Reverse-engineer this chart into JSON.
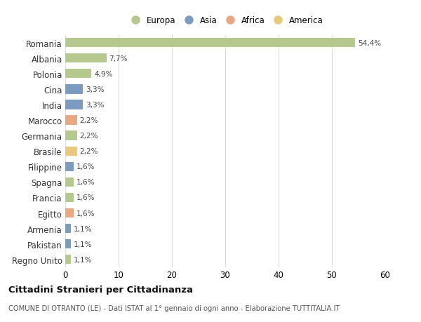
{
  "countries": [
    "Romania",
    "Albania",
    "Polonia",
    "Cina",
    "India",
    "Marocco",
    "Germania",
    "Brasile",
    "Filippine",
    "Spagna",
    "Francia",
    "Egitto",
    "Armenia",
    "Pakistan",
    "Regno Unito"
  ],
  "values": [
    54.4,
    7.7,
    4.9,
    3.3,
    3.3,
    2.2,
    2.2,
    2.2,
    1.6,
    1.6,
    1.6,
    1.6,
    1.1,
    1.1,
    1.1
  ],
  "labels": [
    "54,4%",
    "7,7%",
    "4,9%",
    "3,3%",
    "3,3%",
    "2,2%",
    "2,2%",
    "2,2%",
    "1,6%",
    "1,6%",
    "1,6%",
    "1,6%",
    "1,1%",
    "1,1%",
    "1,1%"
  ],
  "continents": [
    "Europa",
    "Europa",
    "Europa",
    "Asia",
    "Asia",
    "Africa",
    "Europa",
    "America",
    "Asia",
    "Europa",
    "Europa",
    "Africa",
    "Asia",
    "Asia",
    "Europa"
  ],
  "continent_colors": {
    "Europa": "#b5c98e",
    "Asia": "#7b9cc0",
    "Africa": "#e8a882",
    "America": "#e8c97a"
  },
  "legend_entries": [
    "Europa",
    "Asia",
    "Africa",
    "America"
  ],
  "title": "Cittadini Stranieri per Cittadinanza",
  "subtitle": "COMUNE DI OTRANTO (LE) - Dati ISTAT al 1° gennaio di ogni anno - Elaborazione TUTTITALIA.IT",
  "xlim": [
    0,
    60
  ],
  "xticks": [
    0,
    10,
    20,
    30,
    40,
    50,
    60
  ],
  "background_color": "#ffffff",
  "grid_color": "#dddddd",
  "bar_height": 0.6
}
